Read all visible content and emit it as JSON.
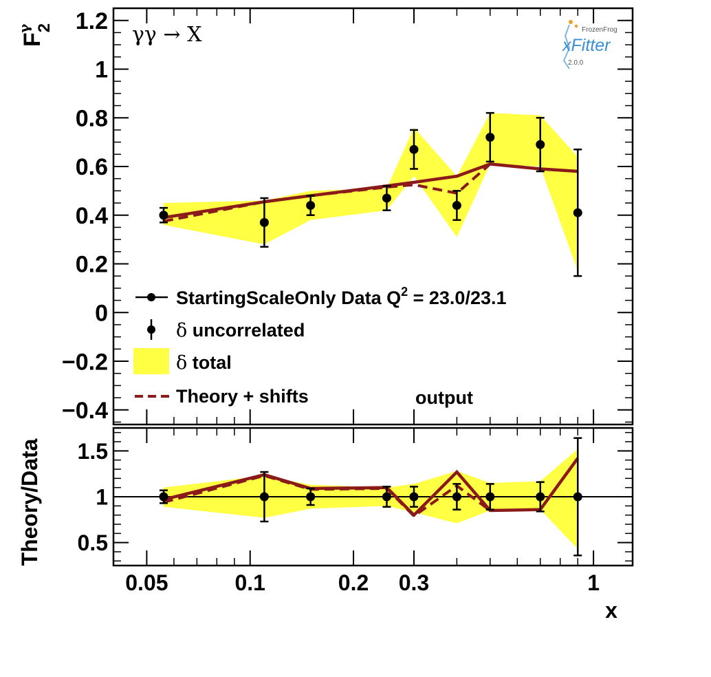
{
  "chart_data": {
    "type": "scatter",
    "x_scale": "log",
    "annotation": "γγ → X",
    "label_extra": "output",
    "logo": {
      "brand": "FrozenFrog",
      "name": "xFitter",
      "version": "2.0.0"
    },
    "x_label": "x",
    "x_ticks": [
      "0.05",
      "0.1",
      "0.2",
      "0.3",
      "1"
    ],
    "x_range": [
      0.04,
      1.3
    ],
    "top": {
      "y_label_main": "F",
      "y_label_sup": "γ",
      "y_label_sub": "2",
      "y_range": [
        -0.46,
        1.25
      ],
      "y_ticks": [
        "1.2",
        "1",
        "0.8",
        "0.6",
        "0.4",
        "0.2",
        "0",
        "−0.2",
        "−0.4"
      ],
      "x": [
        0.056,
        0.11,
        0.15,
        0.25,
        0.3,
        0.4,
        0.5,
        0.7,
        0.9
      ],
      "data": [
        0.4,
        0.37,
        0.44,
        0.47,
        0.67,
        0.44,
        0.72,
        0.69,
        0.41
      ],
      "err_uncorr": [
        0.03,
        0.1,
        0.04,
        0.05,
        0.08,
        0.06,
        0.1,
        0.11,
        0.26
      ],
      "band_lower": [
        0.36,
        0.28,
        0.38,
        0.42,
        0.56,
        0.31,
        0.61,
        0.6,
        0.17
      ],
      "band_upper": [
        0.45,
        0.46,
        0.5,
        0.51,
        0.76,
        0.56,
        0.82,
        0.81,
        0.64
      ],
      "theory": [
        0.39,
        0.455,
        0.48,
        0.52,
        0.535,
        0.56,
        0.61,
        0.59,
        0.58
      ],
      "theory_shifts": [
        0.375,
        0.455,
        0.48,
        0.515,
        0.525,
        0.49,
        0.61,
        null,
        null
      ]
    },
    "bottom": {
      "y_label": "Theory/Data",
      "y_range": [
        0.25,
        1.75
      ],
      "y_ticks": [
        "1.5",
        "1",
        "0.5"
      ],
      "ratio_data": [
        1,
        1,
        1,
        1,
        1,
        1,
        1,
        1,
        1
      ],
      "err_uncorr": [
        0.07,
        0.27,
        0.09,
        0.11,
        0.11,
        0.14,
        0.14,
        0.16,
        0.64
      ],
      "band_lower": [
        0.89,
        0.77,
        0.87,
        0.9,
        0.83,
        0.71,
        0.85,
        0.86,
        0.43
      ],
      "band_upper": [
        1.1,
        1.23,
        1.13,
        1.1,
        1.14,
        1.28,
        1.15,
        1.17,
        1.52
      ],
      "theory": [
        0.97,
        1.24,
        1.09,
        1.1,
        0.8,
        1.27,
        0.85,
        0.86,
        1.42
      ],
      "theory_shifts": [
        0.94,
        1.23,
        1.08,
        1.09,
        0.79,
        1.12,
        0.85,
        null,
        null
      ]
    },
    "legend": [
      {
        "label": "StartingScaleOnly  Data Q",
        "sup": "2",
        "tail": " = 23.0/23.1",
        "style": "marker-line"
      },
      {
        "label_sym": "δ",
        "label": " uncorrelated",
        "style": "marker-errorbar"
      },
      {
        "label_sym": "δ",
        "label": " total",
        "style": "fill"
      },
      {
        "label": "Theory + shifts",
        "style": "dashed"
      }
    ],
    "colors": {
      "band": "#ffff44",
      "theory": "#8b1a1a",
      "data": "#000000"
    }
  }
}
